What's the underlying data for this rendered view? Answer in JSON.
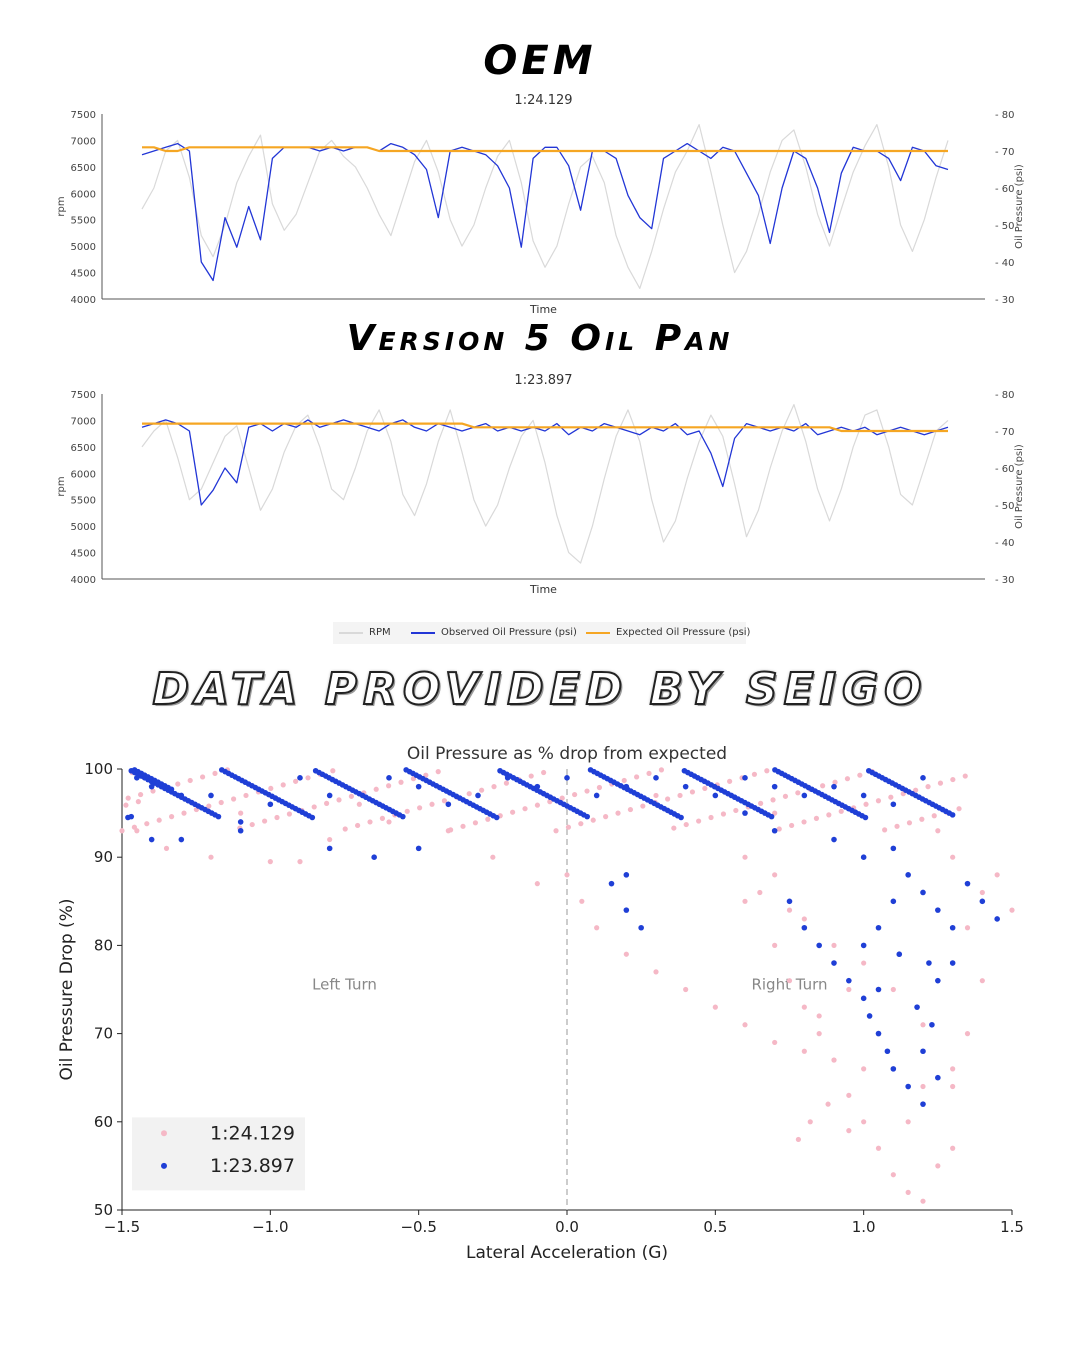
{
  "headings": {
    "oem": "OEM",
    "v5": "Version 5 Oil Pan",
    "credit": "DATA PROVIDED BY SEIGO"
  },
  "colors": {
    "rpm": "#d9d9d9",
    "observed": "#2236d6",
    "expected": "#f5a623",
    "pink": "#f5b8c6",
    "blue": "#1f3fd6"
  },
  "legend": {
    "rpm": "RPM",
    "observed": "Observed Oil Pressure (psi)",
    "expected": "Expected Oil Pressure (psi)"
  },
  "chart_data": [
    {
      "type": "line",
      "title": "1:24.129",
      "xlabel": "Time",
      "ylabel": "rpm",
      "ylabel_right": "Oil Pressure (psi)",
      "ylim": [
        4000,
        7500
      ],
      "ylim_right": [
        30,
        80
      ],
      "yticks": [
        "4000",
        "4500",
        "5000",
        "5500",
        "6000",
        "6500",
        "7000",
        "7500"
      ],
      "yticks_right": [
        "30",
        "40",
        "50",
        "60",
        "70",
        "80"
      ],
      "series": [
        {
          "name": "RPM",
          "values": [
            5700,
            6100,
            6800,
            7000,
            6300,
            5200,
            4800,
            5400,
            6200,
            6700,
            7100,
            5800,
            5300,
            5600,
            6200,
            6800,
            7000,
            6700,
            6500,
            6100,
            5600,
            5200,
            5900,
            6600,
            7000,
            6400,
            5500,
            5000,
            5400,
            6100,
            6700,
            7000,
            6200,
            5100,
            4600,
            5000,
            5800,
            6500,
            6700,
            6200,
            5200,
            4600,
            4200,
            4900,
            5700,
            6400,
            6800,
            7300,
            6400,
            5400,
            4500,
            4900,
            5600,
            6400,
            7000,
            7200,
            6500,
            5600,
            5000,
            5700,
            6400,
            6900,
            7300,
            6500,
            5400,
            4900,
            5500,
            6300,
            7000
          ]
        },
        {
          "name": "Observed Oil Pressure (psi)",
          "values": [
            69,
            70,
            71,
            72,
            70,
            40,
            35,
            52,
            44,
            55,
            46,
            68,
            71,
            71,
            71,
            70,
            71,
            70,
            71,
            71,
            70,
            72,
            71,
            69,
            65,
            52,
            70,
            71,
            70,
            69,
            66,
            60,
            44,
            68,
            71,
            71,
            66,
            54,
            70,
            70,
            68,
            58,
            52,
            49,
            68,
            70,
            72,
            70,
            68,
            71,
            70,
            64,
            58,
            45,
            60,
            70,
            68,
            60,
            48,
            64,
            71,
            70,
            70,
            68,
            62,
            71,
            70,
            66,
            65
          ]
        },
        {
          "name": "Expected Oil Pressure (psi)",
          "values": [
            71,
            71,
            70,
            70,
            71,
            71,
            71,
            71,
            71,
            71,
            71,
            71,
            71,
            71,
            71,
            71,
            71,
            71,
            71,
            71,
            70,
            70,
            70,
            70,
            70,
            70,
            70,
            70,
            70,
            70,
            70,
            70,
            70,
            70,
            70,
            70,
            70,
            70,
            70,
            70,
            70,
            70,
            70,
            70,
            70,
            70,
            70,
            70,
            70,
            70,
            70,
            70,
            70,
            70,
            70,
            70,
            70,
            70,
            70,
            70,
            70,
            70,
            70,
            70,
            70,
            70,
            70,
            70,
            70
          ]
        }
      ]
    },
    {
      "type": "line",
      "title": "1:23.897",
      "xlabel": "Time",
      "ylabel": "rpm",
      "ylabel_right": "Oil Pressure (psi)",
      "ylim": [
        4000,
        7500
      ],
      "ylim_right": [
        30,
        80
      ],
      "yticks": [
        "4000",
        "4500",
        "5000",
        "5500",
        "6000",
        "6500",
        "7000",
        "7500"
      ],
      "yticks_right": [
        "30",
        "40",
        "50",
        "60",
        "70",
        "80"
      ],
      "series": [
        {
          "name": "RPM",
          "values": [
            6500,
            6800,
            7000,
            6300,
            5500,
            5700,
            6200,
            6700,
            6900,
            6100,
            5300,
            5700,
            6400,
            6900,
            7100,
            6500,
            5700,
            5500,
            6100,
            6800,
            7200,
            6600,
            5600,
            5200,
            5800,
            6600,
            7200,
            6400,
            5500,
            5000,
            5400,
            6100,
            6700,
            7000,
            6200,
            5200,
            4500,
            4300,
            5000,
            5900,
            6700,
            7200,
            6600,
            5500,
            4700,
            5100,
            5900,
            6600,
            7100,
            6700,
            5800,
            4800,
            5300,
            6100,
            6800,
            7300,
            6600,
            5700,
            5100,
            5700,
            6500,
            7100,
            7200,
            6500,
            5600,
            5400,
            6100,
            6800,
            7000
          ]
        },
        {
          "name": "Observed Oil Pressure (psi)",
          "values": [
            71,
            72,
            73,
            72,
            70,
            50,
            54,
            60,
            56,
            71,
            72,
            70,
            72,
            71,
            73,
            71,
            72,
            73,
            72,
            71,
            70,
            72,
            73,
            71,
            70,
            72,
            71,
            70,
            71,
            72,
            70,
            71,
            70,
            71,
            70,
            72,
            69,
            71,
            70,
            72,
            71,
            70,
            69,
            71,
            70,
            72,
            69,
            70,
            64,
            55,
            68,
            72,
            71,
            70,
            71,
            70,
            72,
            69,
            70,
            71,
            70,
            71,
            69,
            70,
            71,
            70,
            69,
            70,
            71
          ]
        },
        {
          "name": "Expected Oil Pressure (psi)",
          "values": [
            72,
            72,
            72,
            72,
            72,
            72,
            72,
            72,
            72,
            72,
            72,
            72,
            72,
            72,
            72,
            72,
            72,
            72,
            72,
            72,
            72,
            72,
            72,
            72,
            72,
            72,
            72,
            72,
            71,
            71,
            71,
            71,
            71,
            71,
            71,
            71,
            71,
            71,
            71,
            71,
            71,
            71,
            71,
            71,
            71,
            71,
            71,
            71,
            71,
            71,
            71,
            71,
            71,
            71,
            71,
            71,
            71,
            71,
            71,
            70,
            70,
            70,
            70,
            70,
            70,
            70,
            70,
            70,
            70
          ]
        }
      ]
    },
    {
      "type": "scatter",
      "title": "Oil Pressure as % drop from expected",
      "xlabel": "Lateral Acceleration (G)",
      "ylabel": "Oil Pressure Drop (%)",
      "xlim": [
        -1.5,
        1.5
      ],
      "ylim": [
        50,
        100
      ],
      "xticks": [
        "−1.5",
        "−1.0",
        "−0.5",
        "0.0",
        "0.5",
        "1.0",
        "1.5"
      ],
      "yticks": [
        "50",
        "60",
        "70",
        "80",
        "90",
        "100"
      ],
      "annotations": {
        "left": "Left Turn",
        "right": "Right Turn"
      },
      "legend": [
        "1:24.129",
        "1:23.897"
      ],
      "series": [
        {
          "name": "1:24.129",
          "points_desc": "pink",
          "points": [
            [
              -1.45,
              93
            ],
            [
              -1.35,
              91
            ],
            [
              -1.2,
              90
            ],
            [
              -1.0,
              89.5
            ],
            [
              -0.9,
              89.5
            ],
            [
              -0.8,
              92
            ],
            [
              -0.6,
              94
            ],
            [
              -0.4,
              93
            ],
            [
              -0.25,
              90
            ],
            [
              -0.1,
              87
            ],
            [
              0.0,
              88
            ],
            [
              0.05,
              85
            ],
            [
              0.1,
              82
            ],
            [
              0.2,
              79
            ],
            [
              0.3,
              77
            ],
            [
              0.4,
              75
            ],
            [
              0.5,
              73
            ],
            [
              0.6,
              71
            ],
            [
              0.7,
              69
            ],
            [
              0.8,
              68
            ],
            [
              0.9,
              67
            ],
            [
              1.0,
              66
            ],
            [
              1.1,
              66
            ],
            [
              1.2,
              64
            ],
            [
              1.3,
              64
            ],
            [
              0.6,
              85
            ],
            [
              0.7,
              80
            ],
            [
              0.75,
              76
            ],
            [
              0.8,
              73
            ],
            [
              0.85,
              70
            ],
            [
              0.9,
              67
            ],
            [
              0.95,
              63
            ],
            [
              1.0,
              60
            ],
            [
              1.05,
              57
            ],
            [
              1.1,
              54
            ],
            [
              1.15,
              52
            ],
            [
              1.2,
              51
            ],
            [
              0.78,
              58
            ],
            [
              0.82,
              60
            ],
            [
              0.88,
              62
            ],
            [
              0.95,
              59
            ],
            [
              1.25,
              55
            ],
            [
              1.3,
              57
            ],
            [
              0.7,
              88
            ],
            [
              0.75,
              84
            ],
            [
              0.8,
              83
            ],
            [
              0.9,
              80
            ],
            [
              1.0,
              78
            ],
            [
              1.1,
              75
            ],
            [
              1.2,
              71
            ],
            [
              1.35,
              82
            ],
            [
              1.4,
              86
            ],
            [
              1.45,
              88
            ],
            [
              1.5,
              84
            ],
            [
              1.3,
              90
            ],
            [
              1.25,
              93
            ],
            [
              0.3,
              97
            ],
            [
              0.5,
              97
            ],
            [
              0.7,
              95
            ],
            [
              -0.7,
              96
            ],
            [
              -1.1,
              95
            ],
            [
              1.4,
              76
            ],
            [
              1.35,
              70
            ],
            [
              1.3,
              66
            ],
            [
              1.15,
              60
            ],
            [
              0.85,
              72
            ],
            [
              0.95,
              75
            ],
            [
              1.05,
              70
            ],
            [
              0.6,
              90
            ],
            [
              0.65,
              86
            ]
          ]
        },
        {
          "name": "1:23.897",
          "points_desc": "blue",
          "points": [
            [
              -1.45,
              99
            ],
            [
              -1.4,
              98
            ],
            [
              -1.3,
              97
            ],
            [
              -1.2,
              97
            ],
            [
              -1.1,
              94
            ],
            [
              -1.0,
              96
            ],
            [
              -0.9,
              99
            ],
            [
              -0.8,
              97
            ],
            [
              -0.6,
              99
            ],
            [
              -0.5,
              98
            ],
            [
              -0.4,
              96
            ],
            [
              -0.3,
              97
            ],
            [
              -0.2,
              99
            ],
            [
              -0.1,
              98
            ],
            [
              0.0,
              99
            ],
            [
              0.1,
              97
            ],
            [
              0.2,
              98
            ],
            [
              0.3,
              99
            ],
            [
              0.4,
              98
            ],
            [
              0.5,
              97
            ],
            [
              0.6,
              99
            ],
            [
              0.7,
              98
            ],
            [
              0.8,
              97
            ],
            [
              0.9,
              98
            ],
            [
              1.0,
              97
            ],
            [
              1.1,
              96
            ],
            [
              1.2,
              99
            ],
            [
              -1.4,
              92
            ],
            [
              -1.3,
              92
            ],
            [
              -1.1,
              93
            ],
            [
              -0.8,
              91
            ],
            [
              -0.65,
              90
            ],
            [
              -0.5,
              91
            ],
            [
              0.2,
              84
            ],
            [
              0.25,
              82
            ],
            [
              0.2,
              88
            ],
            [
              0.15,
              87
            ],
            [
              0.75,
              85
            ],
            [
              0.8,
              82
            ],
            [
              0.85,
              80
            ],
            [
              0.9,
              78
            ],
            [
              0.95,
              76
            ],
            [
              1.0,
              74
            ],
            [
              1.02,
              72
            ],
            [
              1.05,
              70
            ],
            [
              1.08,
              68
            ],
            [
              1.1,
              66
            ],
            [
              1.15,
              64
            ],
            [
              1.2,
              62
            ],
            [
              1.0,
              80
            ],
            [
              1.05,
              82
            ],
            [
              1.1,
              85
            ],
            [
              1.15,
              88
            ],
            [
              1.2,
              86
            ],
            [
              1.25,
              84
            ],
            [
              1.22,
              78
            ],
            [
              1.25,
              76
            ],
            [
              1.23,
              71
            ],
            [
              1.2,
              68
            ],
            [
              1.25,
              65
            ],
            [
              1.3,
              82
            ],
            [
              1.35,
              87
            ],
            [
              1.4,
              85
            ],
            [
              1.45,
              83
            ],
            [
              1.3,
              78
            ],
            [
              0.9,
              92
            ],
            [
              1.0,
              90
            ],
            [
              1.1,
              91
            ],
            [
              0.7,
              93
            ],
            [
              0.6,
              95
            ],
            [
              1.05,
              75
            ],
            [
              1.12,
              79
            ],
            [
              1.18,
              73
            ]
          ]
        }
      ]
    }
  ]
}
